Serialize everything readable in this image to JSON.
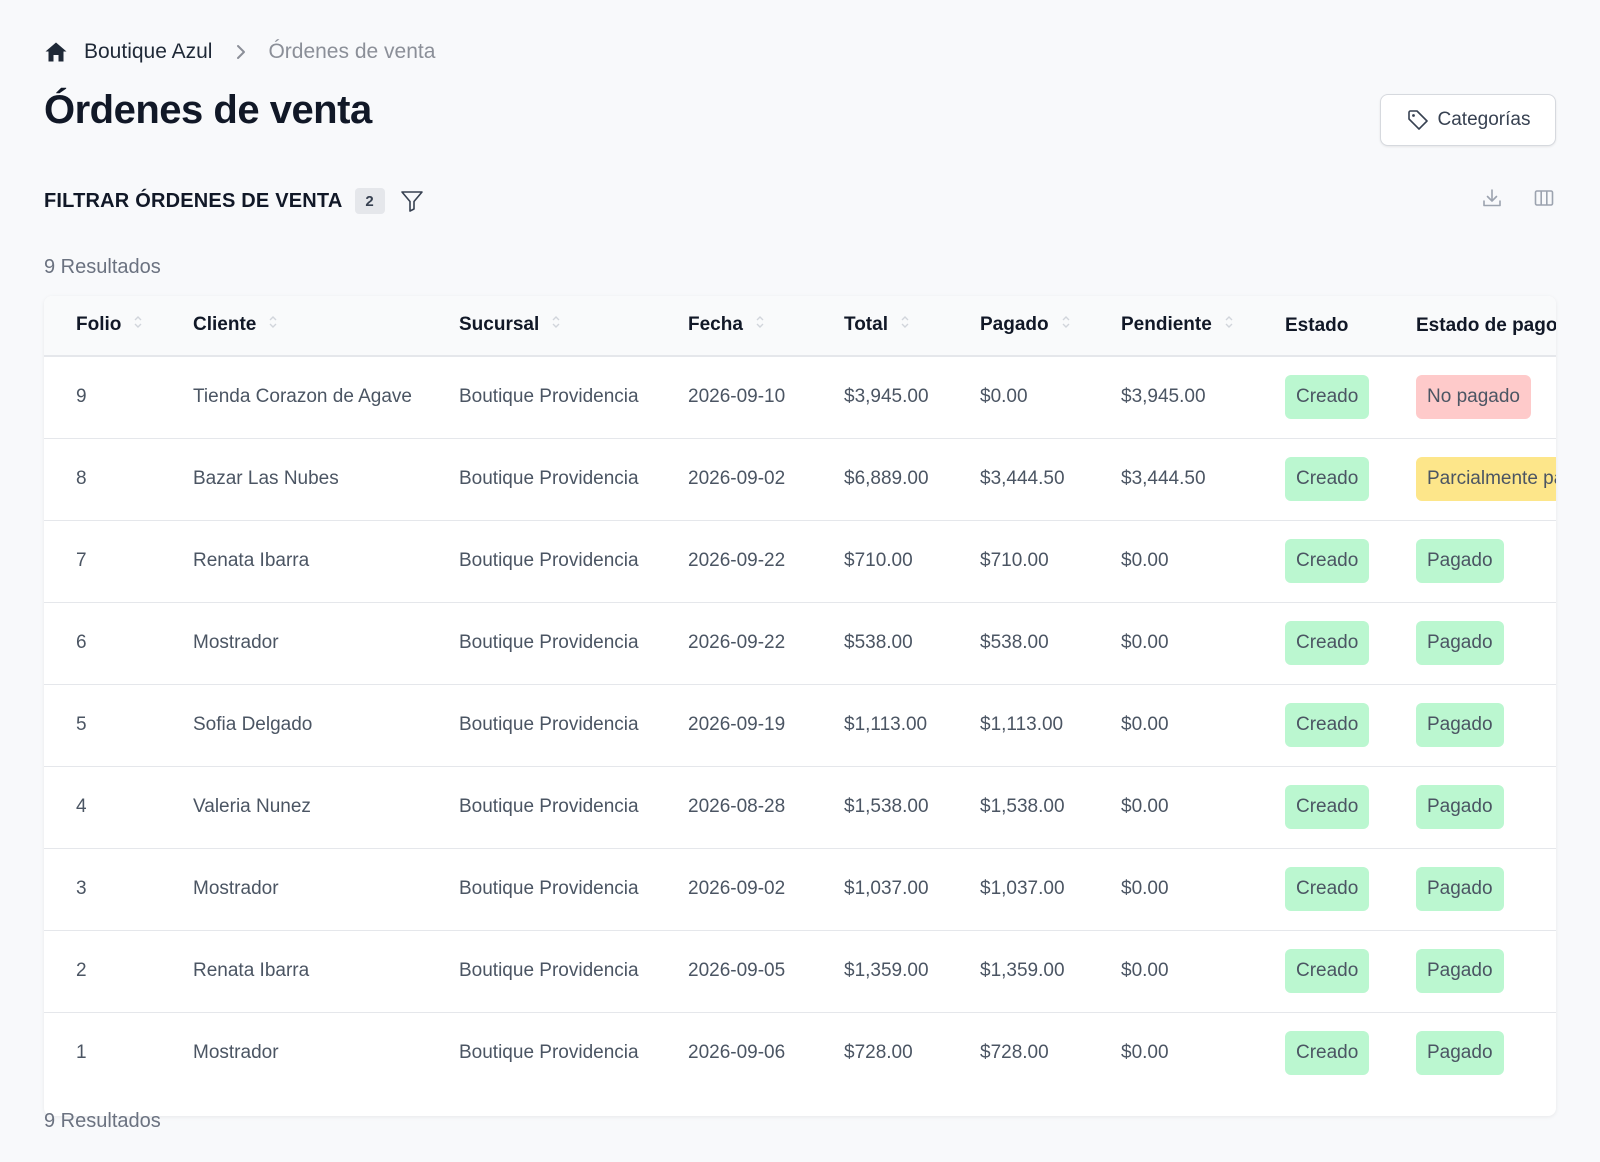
{
  "breadcrumb": {
    "store": "Boutique Azul",
    "current": "Órdenes de venta"
  },
  "page": {
    "title": "Órdenes de venta"
  },
  "toolbar": {
    "categories_label": "Categorías"
  },
  "filter": {
    "title": "FILTRAR ÓRDENES DE VENTA",
    "count": "2"
  },
  "results": {
    "top": "9 Resultados",
    "bottom": "9 Resultados"
  },
  "table": {
    "headers": {
      "folio": "Folio",
      "cliente": "Cliente",
      "sucursal": "Sucursal",
      "fecha": "Fecha",
      "total": "Total",
      "pagado": "Pagado",
      "pendiente": "Pendiente",
      "estado": "Estado",
      "estado_pago": "Estado de pago"
    },
    "rows": [
      {
        "folio": "9",
        "cliente": "Tienda Corazon de Agave",
        "sucursal": "Boutique Providencia",
        "fecha": "2026-09-10",
        "total": "$3,945.00",
        "pagado": "$0.00",
        "pendiente": "$3,945.00",
        "estado": "Creado",
        "estado_pago": "No pagado",
        "pago_color": "red"
      },
      {
        "folio": "8",
        "cliente": "Bazar Las Nubes",
        "sucursal": "Boutique Providencia",
        "fecha": "2026-09-02",
        "total": "$6,889.00",
        "pagado": "$3,444.50",
        "pendiente": "$3,444.50",
        "estado": "Creado",
        "estado_pago": "Parcialmente pagado",
        "pago_color": "yellow"
      },
      {
        "folio": "7",
        "cliente": "Renata Ibarra",
        "sucursal": "Boutique Providencia",
        "fecha": "2026-09-22",
        "total": "$710.00",
        "pagado": "$710.00",
        "pendiente": "$0.00",
        "estado": "Creado",
        "estado_pago": "Pagado",
        "pago_color": "green"
      },
      {
        "folio": "6",
        "cliente": "Mostrador",
        "sucursal": "Boutique Providencia",
        "fecha": "2026-09-22",
        "total": "$538.00",
        "pagado": "$538.00",
        "pendiente": "$0.00",
        "estado": "Creado",
        "estado_pago": "Pagado",
        "pago_color": "green"
      },
      {
        "folio": "5",
        "cliente": "Sofia Delgado",
        "sucursal": "Boutique Providencia",
        "fecha": "2026-09-19",
        "total": "$1,113.00",
        "pagado": "$1,113.00",
        "pendiente": "$0.00",
        "estado": "Creado",
        "estado_pago": "Pagado",
        "pago_color": "green"
      },
      {
        "folio": "4",
        "cliente": "Valeria Nunez",
        "sucursal": "Boutique Providencia",
        "fecha": "2026-08-28",
        "total": "$1,538.00",
        "pagado": "$1,538.00",
        "pendiente": "$0.00",
        "estado": "Creado",
        "estado_pago": "Pagado",
        "pago_color": "green"
      },
      {
        "folio": "3",
        "cliente": "Mostrador",
        "sucursal": "Boutique Providencia",
        "fecha": "2026-09-02",
        "total": "$1,037.00",
        "pagado": "$1,037.00",
        "pendiente": "$0.00",
        "estado": "Creado",
        "estado_pago": "Pagado",
        "pago_color": "green"
      },
      {
        "folio": "2",
        "cliente": "Renata Ibarra",
        "sucursal": "Boutique Providencia",
        "fecha": "2026-09-05",
        "total": "$1,359.00",
        "pagado": "$1,359.00",
        "pendiente": "$0.00",
        "estado": "Creado",
        "estado_pago": "Pagado",
        "pago_color": "green"
      },
      {
        "folio": "1",
        "cliente": "Mostrador",
        "sucursal": "Boutique Providencia",
        "fecha": "2026-09-06",
        "total": "$728.00",
        "pagado": "$728.00",
        "pendiente": "$0.00",
        "estado": "Creado",
        "estado_pago": "Pagado",
        "pago_color": "green"
      }
    ]
  },
  "icons": {
    "home": "home-icon",
    "breadcrumb_sep": "chevron-right-icon",
    "categories": "tag-icon",
    "filter": "filter-icon",
    "download": "download-icon",
    "columns": "columns-icon",
    "sort": "sort-icon"
  },
  "colors": {
    "green_badge": "#bbf7d0",
    "red_badge": "#fecaca",
    "yellow_badge": "#fde68a"
  }
}
